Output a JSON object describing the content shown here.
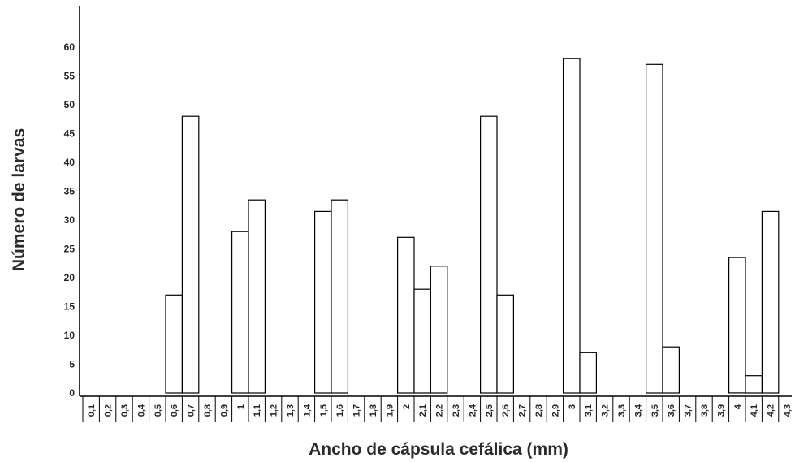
{
  "chart_data": {
    "type": "bar",
    "title": "",
    "xlabel": "Ancho de cápsula cefálica (mm)",
    "ylabel": "Número de larvas",
    "ylim": [
      0,
      65
    ],
    "yticks": [
      0,
      5,
      10,
      15,
      20,
      25,
      30,
      35,
      40,
      45,
      50,
      55,
      60
    ],
    "ytick_labels": [
      "0",
      "5",
      "10",
      "15",
      "20",
      "25",
      "30",
      "35",
      "40",
      "45",
      "50",
      "55",
      "60"
    ],
    "categories": [
      "0,1",
      "0,2",
      "0,3",
      "0,4",
      "0,5",
      "0,6",
      "0,7",
      "0,8",
      "0,9",
      "1",
      "1,1",
      "1,2",
      "1,3",
      "1,4",
      "1,5",
      "1,6",
      "1,7",
      "1,8",
      "1,9",
      "2",
      "2,1",
      "2,2",
      "2,3",
      "2,4",
      "2,5",
      "2,6",
      "2,7",
      "2,8",
      "2,9",
      "3",
      "3,1",
      "3,2",
      "3,3",
      "3,4",
      "3,5",
      "3,6",
      "3,7",
      "3,8",
      "3,9",
      "4",
      "4,1",
      "4,2",
      "4,3"
    ],
    "values": [
      0,
      0,
      0,
      0,
      0,
      17,
      48,
      0,
      0,
      28,
      33.5,
      0,
      0,
      0,
      31.5,
      33.5,
      0,
      0,
      0,
      27,
      18,
      22,
      0,
      0,
      48,
      17,
      0,
      0,
      0,
      58,
      7,
      0,
      0,
      0,
      57,
      8,
      0,
      0,
      0,
      23.5,
      3,
      31.5,
      0
    ],
    "grid": false,
    "legend": "none"
  }
}
